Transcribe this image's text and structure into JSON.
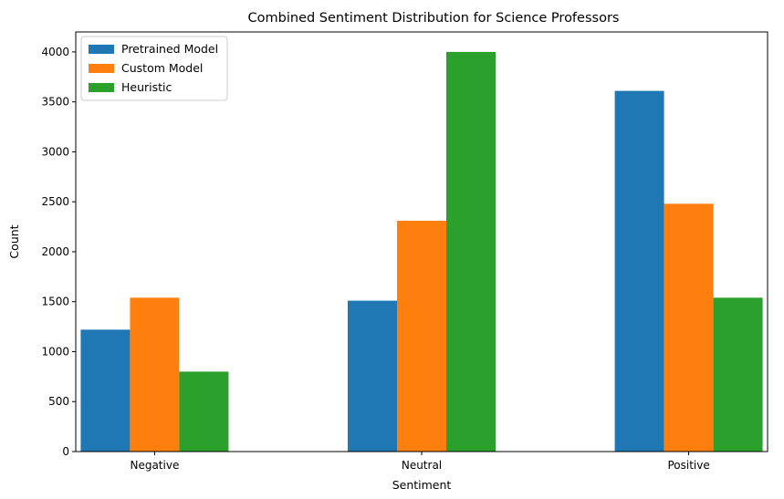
{
  "chart_data": {
    "type": "bar",
    "title": "Combined Sentiment Distribution for Science Professors",
    "xlabel": "Sentiment",
    "ylabel": "Count",
    "categories": [
      "Negative",
      "Neutral",
      "Positive"
    ],
    "series": [
      {
        "name": "Pretrained Model",
        "color": "#1f77b4",
        "values": [
          1220,
          1510,
          3610
        ]
      },
      {
        "name": "Custom Model",
        "color": "#ff7f0e",
        "values": [
          1540,
          2310,
          2480
        ]
      },
      {
        "name": "Heuristic",
        "color": "#2ca02c",
        "values": [
          800,
          4000,
          1540
        ]
      }
    ],
    "ylim": [
      0,
      4200
    ],
    "yticks": [
      0,
      500,
      1000,
      1500,
      2000,
      2500,
      3000,
      3500,
      4000
    ],
    "grid": false,
    "legend": "top-left"
  }
}
